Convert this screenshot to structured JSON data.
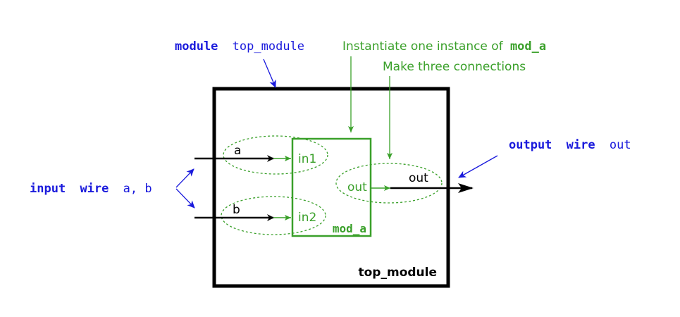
{
  "colors": {
    "blue": "#1a1adc",
    "green": "#3aa02a",
    "black": "#000000"
  },
  "top_label": {
    "keyword": "module",
    "name": "top_module"
  },
  "instantiate_note": {
    "prefix": "Instantiate one instance of",
    "module": "mod_a",
    "line2": "Make three connections"
  },
  "input_label": {
    "keyword": "input",
    "type": "wire",
    "names": "a, b"
  },
  "output_label": {
    "keyword": "output",
    "type": "wire",
    "name": "out"
  },
  "signals": {
    "a": "a",
    "b": "b",
    "out": "out"
  },
  "mod_a_ports": {
    "in1": "in1",
    "in2": "in2",
    "out": "out"
  },
  "mod_a_name": "mod_a",
  "top_module_name": "top_module"
}
